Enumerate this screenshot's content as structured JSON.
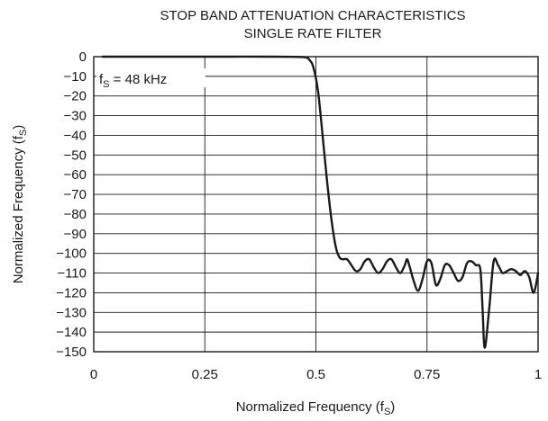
{
  "chart_data": {
    "type": "line",
    "title_lines": [
      "STOP BAND ATTENUATION CHARACTERISTICS",
      "SINGLE RATE FILTER"
    ],
    "xlabel_main": "Normalized Frequency (f",
    "xlabel_sub": "S",
    "xlabel_close": ")",
    "ylabel_main": "Normalized Frequency (f",
    "ylabel_sub": "S",
    "ylabel_close": ")",
    "annotation_main": "f",
    "annotation_sub": "S",
    "annotation_rest": " = 48 kHz",
    "xlim": [
      0,
      1
    ],
    "ylim": [
      -150,
      0
    ],
    "x_ticks": [
      0,
      0.25,
      0.5,
      0.75,
      1
    ],
    "x_tick_labels": [
      "0",
      "0.25",
      "0.5",
      "0.75",
      "1"
    ],
    "y_ticks": [
      0,
      -10,
      -20,
      -30,
      -40,
      -50,
      -60,
      -70,
      -80,
      -90,
      -100,
      -110,
      -120,
      -130,
      -140,
      -150
    ],
    "y_tick_labels": [
      "0",
      "−10",
      "−20",
      "−30",
      "−40",
      "−50",
      "−60",
      "−70",
      "−80",
      "−90",
      "−100",
      "−110",
      "−120",
      "−130",
      "−140",
      "−150"
    ],
    "grid": true,
    "series": [
      {
        "color": "#1a1a1a",
        "x": [
          0.02,
          0.1,
          0.2,
          0.3,
          0.4,
          0.47,
          0.485,
          0.495,
          0.505,
          0.515,
          0.525,
          0.535,
          0.545,
          0.553,
          0.56,
          0.57,
          0.58,
          0.59,
          0.6,
          0.61,
          0.62,
          0.63,
          0.64,
          0.65,
          0.66,
          0.67,
          0.68,
          0.69,
          0.7,
          0.705,
          0.71,
          0.72,
          0.73,
          0.74,
          0.75,
          0.76,
          0.77,
          0.78,
          0.79,
          0.8,
          0.81,
          0.82,
          0.83,
          0.84,
          0.85,
          0.86,
          0.87,
          0.875,
          0.88,
          0.89,
          0.9,
          0.91,
          0.92,
          0.93,
          0.94,
          0.95,
          0.96,
          0.97,
          0.98,
          0.99,
          1.0
        ],
        "y": [
          0,
          0,
          0,
          0,
          0,
          -0.2,
          -1.5,
          -6,
          -18,
          -40,
          -63,
          -83,
          -97,
          -102,
          -103,
          -103,
          -106,
          -109,
          -108,
          -104,
          -103,
          -107,
          -110,
          -108,
          -104,
          -103,
          -107,
          -110,
          -106,
          -103,
          -106,
          -114,
          -119,
          -113,
          -104,
          -105,
          -116,
          -113,
          -106,
          -106,
          -110,
          -114,
          -112,
          -105,
          -104,
          -106,
          -108,
          -128,
          -148,
          -128,
          -104,
          -106,
          -110,
          -109,
          -108,
          -109,
          -111,
          -109,
          -112,
          -120,
          -110
        ]
      }
    ]
  }
}
